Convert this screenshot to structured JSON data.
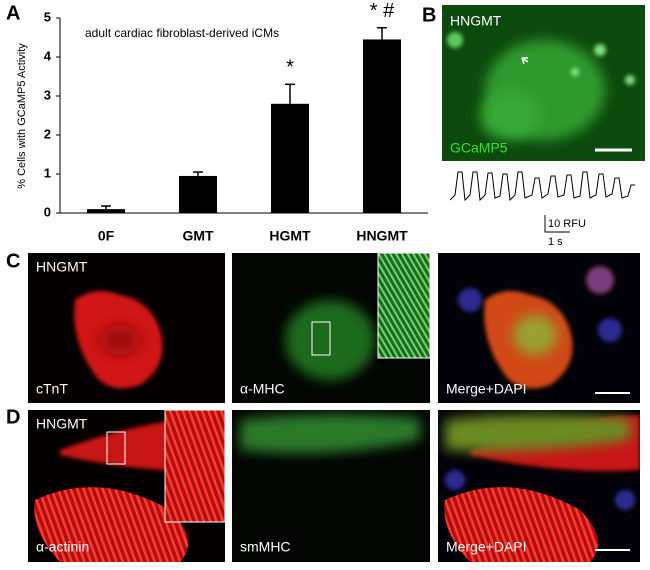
{
  "chart_data": {
    "type": "bar",
    "title": "adult cardiac fibroblast-derived iCMs",
    "y_label": "% Cells with GCaMP5 Activity",
    "categories": [
      "0F",
      "GMT",
      "HGMT",
      "HNGMT"
    ],
    "values": [
      0.1,
      0.95,
      2.8,
      4.45
    ],
    "errors": [
      0.08,
      0.1,
      0.5,
      0.3
    ],
    "significance_labels": [
      null,
      null,
      "*",
      "* #"
    ],
    "color": "#000000",
    "ylim": [
      0,
      5
    ],
    "yticks": [
      0,
      1,
      2,
      3,
      4,
      5
    ],
    "grid": false
  },
  "figure": {
    "panel_labels": [
      "A",
      "B",
      "C",
      "D"
    ],
    "panel_b": {
      "sample": "HNGMT",
      "stain": "GCaMP5",
      "scale_y": "10 RFU",
      "scale_x": "1 s"
    },
    "panel_c": {
      "sample": "HNGMT",
      "stains": [
        "cTnT",
        "α-MHC",
        "Merge+DAPI"
      ]
    },
    "panel_d": {
      "sample": "HNGMT",
      "stains": [
        "α-actinin",
        "smMHC",
        "Merge+DAPI"
      ]
    }
  }
}
